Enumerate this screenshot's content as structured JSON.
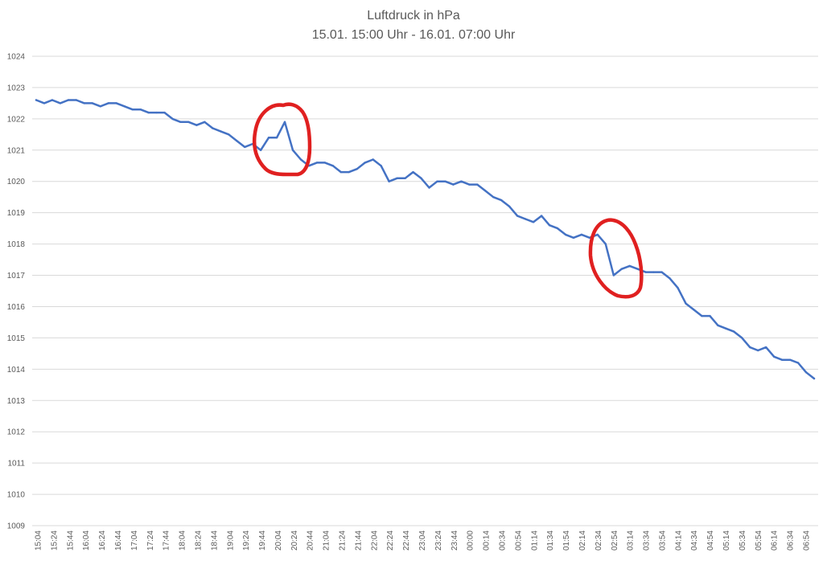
{
  "chart_data": {
    "type": "line",
    "title": "Luftdruck in hPa",
    "subtitle": "15.01. 15:00 Uhr - 16.01. 07:00 Uhr",
    "xlabel": "",
    "ylabel": "",
    "ylim": [
      1009,
      1024
    ],
    "yticks": [
      "1009",
      "1010",
      "1011",
      "1012",
      "1013",
      "1014",
      "1015",
      "1016",
      "1017",
      "1018",
      "1019",
      "1020",
      "1021",
      "1022",
      "1023",
      "1024"
    ],
    "grid": true,
    "line_color": "#4472c4",
    "highlight_color": "#e02020",
    "x_tick_labels": [
      "15:04",
      "15:24",
      "15:44",
      "16:04",
      "16:24",
      "16:44",
      "17:04",
      "17:24",
      "17:44",
      "18:04",
      "18:24",
      "18:44",
      "19:04",
      "19:24",
      "19:44",
      "20:04",
      "20:24",
      "20:44",
      "21:04",
      "21:24",
      "21:44",
      "22:04",
      "22:24",
      "22:44",
      "23:04",
      "23:24",
      "23:44",
      "00:00",
      "00:14",
      "00:34",
      "00:54",
      "01:14",
      "01:34",
      "01:54",
      "02:14",
      "02:34",
      "02:54",
      "03:14",
      "03:34",
      "03:54",
      "04:14",
      "04:34",
      "04:54",
      "05:14",
      "05:34",
      "05:54",
      "06:14",
      "06:34",
      "06:54"
    ],
    "series": [
      {
        "values": [
          1022.6,
          1022.5,
          1022.6,
          1022.5,
          1022.6,
          1022.6,
          1022.5,
          1022.5,
          1022.4,
          1022.5,
          1022.5,
          1022.4,
          1022.3,
          1022.3,
          1022.2,
          1022.2,
          1022.2,
          1022.0,
          1021.9,
          1021.9,
          1021.8,
          1021.9,
          1021.7,
          1021.6,
          1021.5,
          1021.3,
          1021.1,
          1021.2,
          1021.0,
          1021.4,
          1021.4,
          1021.9,
          1021.0,
          1020.7,
          1020.5,
          1020.6,
          1020.6,
          1020.5,
          1020.3,
          1020.3,
          1020.4,
          1020.6,
          1020.7,
          1020.5,
          1020.0,
          1020.1,
          1020.1,
          1020.3,
          1020.1,
          1019.8,
          1020.0,
          1020.0,
          1019.9,
          1020.0,
          1019.9,
          1019.9,
          1019.7,
          1019.5,
          1019.4,
          1019.2,
          1018.9,
          1018.8,
          1018.7,
          1018.9,
          1018.6,
          1018.5,
          1018.3,
          1018.2,
          1018.3,
          1018.2,
          1018.3,
          1018.0,
          1017.0,
          1017.2,
          1017.3,
          1017.2,
          1017.1,
          1017.1,
          1017.1,
          1016.9,
          1016.6,
          1016.1,
          1015.9,
          1015.7,
          1015.7,
          1015.4,
          1015.3,
          1015.2,
          1015.0,
          1014.7,
          1014.6,
          1014.7,
          1014.4,
          1014.3,
          1014.3,
          1014.2,
          1013.9,
          1013.7
        ]
      }
    ],
    "annotations": [
      {
        "type": "circle",
        "around_value": 1021.9
      },
      {
        "type": "circle",
        "around_value": 1017.0
      }
    ]
  }
}
